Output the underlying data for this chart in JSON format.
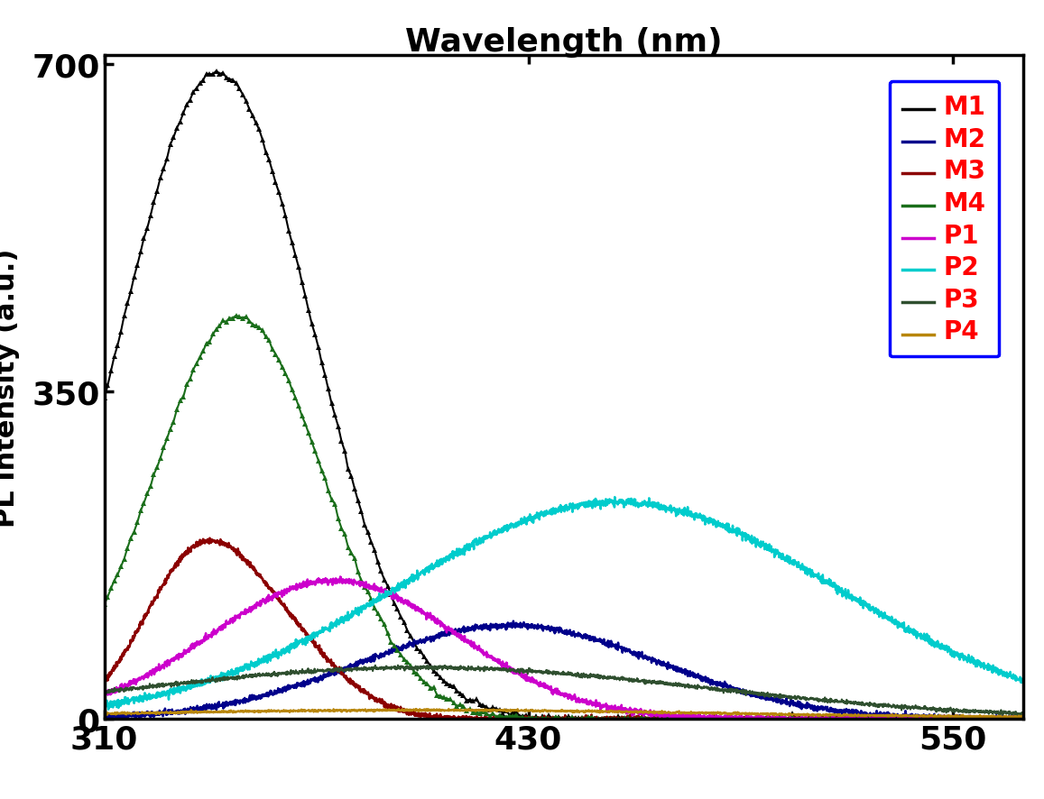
{
  "title": "Wavelength (nm)",
  "ylabel": "PL Intensity (a.u.)",
  "xlim": [
    310,
    570
  ],
  "ylim": [
    0,
    710
  ],
  "xticks": [
    310,
    430,
    550
  ],
  "yticks": [
    0,
    350,
    700
  ],
  "legend_labels": [
    "M1",
    "M2",
    "M3",
    "M4",
    "P1",
    "P2",
    "P3",
    "P4"
  ],
  "line_colors": {
    "M1": "#000000",
    "M2": "#00008B",
    "M3": "#8B0000",
    "M4": "#1a6e1a",
    "P1": "#CC00CC",
    "P2": "#00CCCC",
    "P3": "#2F4F2F",
    "P4": "#B8860B"
  },
  "background_color": "#ffffff"
}
